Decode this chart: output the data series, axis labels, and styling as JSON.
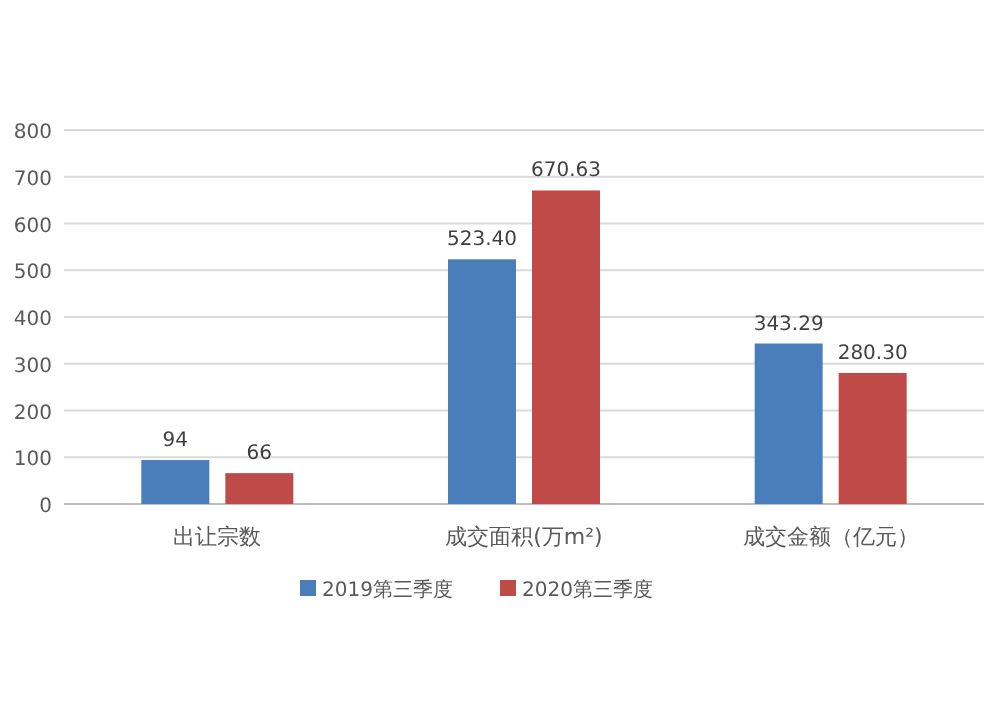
{
  "chart_data": {
    "type": "bar",
    "categories": [
      "出让宗数",
      "成交面积(万m²)",
      "成交金额（亿元）"
    ],
    "series": [
      {
        "name": "2019第三季度",
        "color": "#4a7ebb",
        "values": [
          94,
          523.4,
          343.29
        ],
        "value_labels": [
          "94",
          "523.40",
          "343.29"
        ]
      },
      {
        "name": "2020第三季度",
        "color": "#be4b48",
        "values": [
          66,
          670.63,
          280.3
        ],
        "value_labels": [
          "66",
          "670.63",
          "280.30"
        ]
      }
    ],
    "ylim": [
      0,
      800
    ],
    "yticks": [
      0,
      100,
      200,
      300,
      400,
      500,
      600,
      700,
      800
    ],
    "grid": "y",
    "legend": "bottom"
  }
}
